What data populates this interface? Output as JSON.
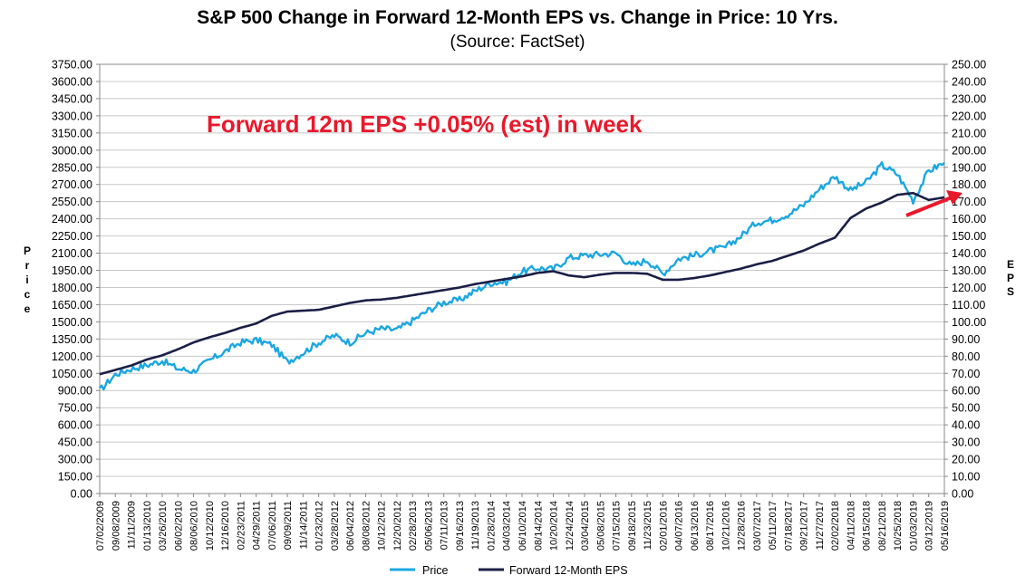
{
  "chart_data": {
    "type": "line",
    "title": "S&P 500 Change in Forward 12-Month EPS vs. Change in Price: 10 Yrs.",
    "subtitle": "(Source: FactSet)",
    "ylabel": "Price",
    "y2label": "EPS",
    "ylim": [
      0,
      3750
    ],
    "y2lim": [
      0,
      250
    ],
    "yticks": [
      "0.00",
      "150.00",
      "300.00",
      "450.00",
      "600.00",
      "750.00",
      "900.00",
      "1050.00",
      "1200.00",
      "1350.00",
      "1500.00",
      "1650.00",
      "1800.00",
      "1950.00",
      "2100.00",
      "2250.00",
      "2400.00",
      "2550.00",
      "2700.00",
      "2850.00",
      "3000.00",
      "3150.00",
      "3300.00",
      "3450.00",
      "3600.00",
      "3750.00"
    ],
    "y2ticks": [
      "0.00",
      "10.00",
      "20.00",
      "30.00",
      "40.00",
      "50.00",
      "60.00",
      "70.00",
      "80.00",
      "90.00",
      "100.00",
      "110.00",
      "120.00",
      "130.00",
      "140.00",
      "150.00",
      "160.00",
      "170.00",
      "180.00",
      "190.00",
      "200.00",
      "210.00",
      "220.00",
      "230.00",
      "240.00",
      "250.00"
    ],
    "xticks": [
      "07/02/2009",
      "09/08/2009",
      "11/11/2009",
      "01/13/2010",
      "03/26/2010",
      "06/02/2010",
      "08/06/2010",
      "10/12/2010",
      "12/16/2010",
      "02/23/2011",
      "04/29/2011",
      "07/06/2011",
      "09/09/2011",
      "11/14/2011",
      "01/23/2012",
      "03/28/2012",
      "06/04/2012",
      "08/08/2012",
      "10/12/2012",
      "12/20/2012",
      "02/28/2013",
      "05/06/2013",
      "07/11/2013",
      "09/16/2013",
      "11/19/2013",
      "01/28/2014",
      "04/03/2014",
      "06/10/2014",
      "08/14/2014",
      "10/20/2014",
      "12/24/2014",
      "03/04/2015",
      "05/08/2015",
      "07/15/2015",
      "09/18/2015",
      "11/23/2015",
      "02/01/2016",
      "04/07/2016",
      "06/13/2016",
      "08/17/2016",
      "10/21/2016",
      "12/28/2016",
      "03/07/2017",
      "05/11/2017",
      "07/18/2017",
      "09/21/2017",
      "11/27/2017",
      "02/02/2018",
      "04/11/2018",
      "06/15/2018",
      "08/21/2018",
      "10/25/2018",
      "01/03/2019",
      "03/12/2019",
      "05/16/2019"
    ],
    "series": [
      {
        "name": "Price",
        "axis": "left",
        "color": "#1ba7e0",
        "values": [
          900,
          1040,
          1090,
          1120,
          1160,
          1090,
          1070,
          1160,
          1240,
          1320,
          1340,
          1300,
          1150,
          1230,
          1320,
          1380,
          1320,
          1400,
          1440,
          1430,
          1510,
          1600,
          1670,
          1690,
          1770,
          1840,
          1850,
          1940,
          1970,
          1960,
          2060,
          2080,
          2090,
          2100,
          1990,
          2040,
          1920,
          2050,
          2080,
          2120,
          2150,
          2250,
          2370,
          2390,
          2440,
          2520,
          2660,
          2770,
          2650,
          2720,
          2870,
          2790,
          2560,
          2820,
          2890
        ]
      },
      {
        "name": "Forward 12-Month EPS",
        "axis": "right",
        "color": "#1b1f45",
        "values": [
          69.5,
          72.0,
          74.5,
          78.0,
          80.5,
          84.0,
          88.0,
          91.0,
          93.5,
          96.5,
          99.0,
          103.5,
          106.0,
          106.5,
          107.0,
          109.0,
          111.0,
          112.5,
          113.0,
          114.0,
          115.5,
          117.0,
          118.5,
          120.0,
          122.0,
          123.5,
          125.0,
          126.5,
          128.5,
          129.5,
          127.0,
          126.0,
          127.5,
          128.5,
          128.5,
          128.0,
          124.5,
          124.5,
          125.5,
          127.0,
          129.0,
          131.0,
          133.5,
          135.5,
          138.5,
          141.5,
          145.5,
          149.0,
          160.5,
          166.0,
          169.5,
          174.0,
          175.0,
          171.0,
          172.5
        ]
      }
    ],
    "annotation": "Forward 12m EPS +0.05% (est) in week",
    "legend_position": "bottom"
  },
  "colors": {
    "annotation": "#e8192c",
    "price": "#1ba7e0",
    "eps": "#1b1f45"
  }
}
